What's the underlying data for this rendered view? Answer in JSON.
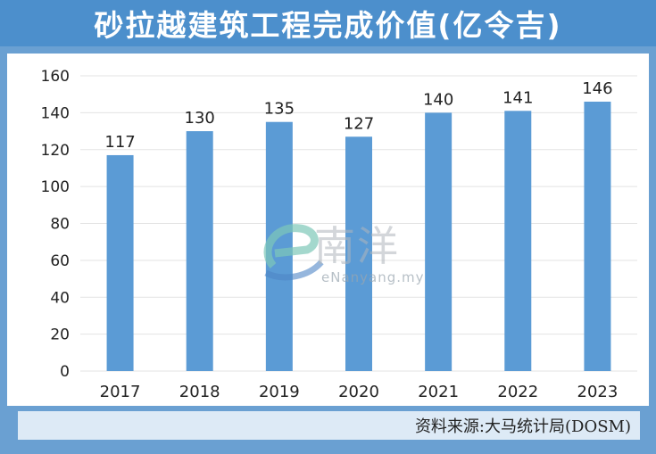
{
  "header": {
    "title": "砂拉越建筑工程完成价值(亿令吉)"
  },
  "source": {
    "text": "资料来源:大马统计局(DOSM)"
  },
  "watermark": {
    "mark": "e",
    "text_cn": "南洋",
    "text_latin": "eNanyang.my"
  },
  "colors": {
    "header": "#4c8fcc",
    "frame": "#6aa0d2",
    "bar": "#5b9bd5",
    "grid": "#e3e3e3",
    "source_bg": "#ddeaf6"
  },
  "chart_data": {
    "type": "bar",
    "title": "砂拉越建筑工程完成价值(亿令吉)",
    "categories": [
      "2017",
      "2018",
      "2019",
      "2020",
      "2021",
      "2022",
      "2023"
    ],
    "values": [
      117,
      130,
      135,
      127,
      140,
      141,
      146
    ],
    "data_labels": [
      "117",
      "130",
      "135",
      "127",
      "140",
      "141",
      "146"
    ],
    "ylim": [
      0,
      160
    ],
    "yticks": [
      0,
      20,
      40,
      60,
      80,
      100,
      120,
      140,
      160
    ],
    "xlabel": "",
    "ylabel": "",
    "grid": true,
    "legend": "none"
  }
}
